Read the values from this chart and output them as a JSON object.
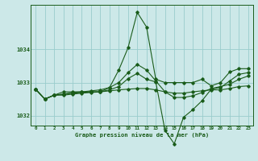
{
  "title": "Graphe pression niveau de la mer (hPa)",
  "bg_color": "#cce8e8",
  "grid_color": "#99cccc",
  "line_color": "#1a5c1a",
  "s1": [
    1032.8,
    1032.5,
    1032.62,
    1032.72,
    1032.72,
    1032.72,
    1032.72,
    1032.72,
    1032.85,
    1033.38,
    1034.05,
    1035.12,
    1034.68,
    1033.1,
    1033.0,
    1033.0,
    1033.0,
    1033.0,
    1033.1,
    1032.9,
    1033.0,
    1033.32,
    1033.42,
    1033.42
  ],
  "s2": [
    1032.8,
    1032.5,
    1032.62,
    1032.65,
    1032.7,
    1032.72,
    1032.75,
    1032.78,
    1032.85,
    1033.0,
    1033.3,
    1033.55,
    1033.38,
    1033.05,
    1032.72,
    1032.55,
    1032.55,
    1032.6,
    1032.7,
    1032.82,
    1032.88,
    1032.95,
    1033.1,
    1033.2
  ],
  "s3": [
    1032.8,
    1032.5,
    1032.62,
    1032.65,
    1032.68,
    1032.7,
    1032.72,
    1032.72,
    1032.75,
    1032.78,
    1032.8,
    1032.82,
    1032.82,
    1032.78,
    1032.72,
    1032.68,
    1032.68,
    1032.72,
    1032.75,
    1032.78,
    1032.78,
    1032.82,
    1032.88,
    1032.9
  ],
  "s4": [
    1032.8,
    1032.5,
    1032.62,
    1032.62,
    1032.65,
    1032.68,
    1032.7,
    1032.72,
    1032.78,
    1032.88,
    1033.12,
    1033.28,
    1033.1,
    1033.02,
    1031.55,
    1031.15,
    1031.95,
    1032.18,
    1032.45,
    1032.8,
    1032.85,
    1033.05,
    1033.25,
    1033.3
  ],
  "hours": [
    0,
    1,
    2,
    3,
    4,
    5,
    6,
    7,
    8,
    9,
    10,
    11,
    12,
    13,
    14,
    15,
    16,
    17,
    18,
    19,
    20,
    21,
    22,
    23
  ],
  "ylim": [
    1031.7,
    1035.35
  ],
  "yticks": [
    1032,
    1033,
    1034
  ],
  "figsize": [
    3.2,
    2.0
  ],
  "dpi": 100
}
